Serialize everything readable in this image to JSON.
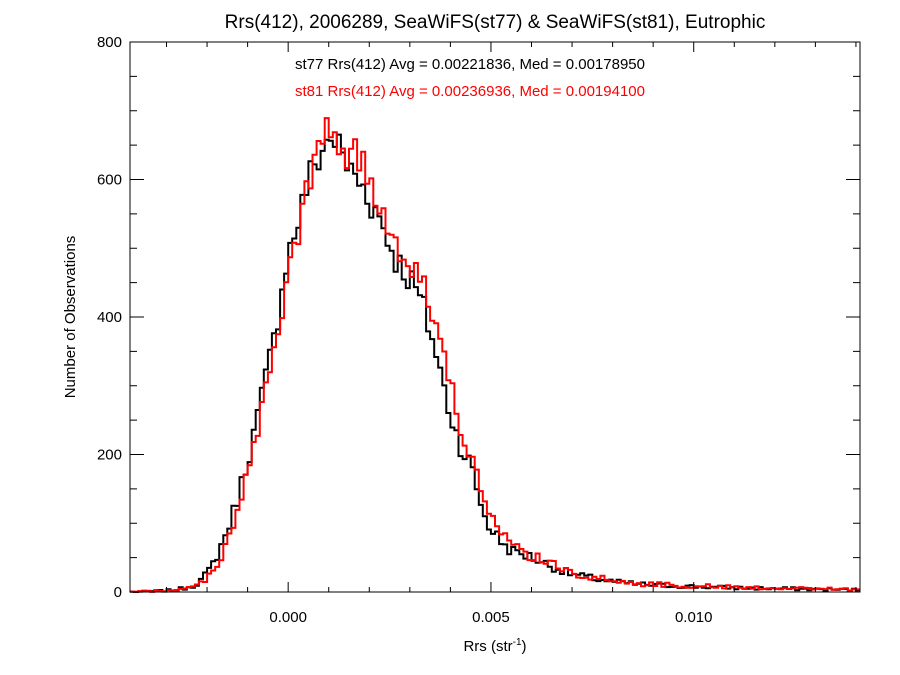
{
  "chart_data": {
    "type": "histogram-step",
    "title": "Rrs(412), 2006289, SeaWiFS(st77) & SeaWiFS(st81), Eutrophic",
    "xlabel_base": "Rrs (str",
    "xlabel_sup": "-1",
    "xlabel_close": ")",
    "ylabel": "Number of Observations",
    "xlim": [
      -0.0039,
      0.0141
    ],
    "ylim": [
      0,
      800
    ],
    "x_ticks": [
      0.0,
      0.005,
      0.01
    ],
    "x_tick_labels": [
      "0.000",
      "0.005",
      "0.010"
    ],
    "y_ticks": [
      0,
      200,
      400,
      600,
      800
    ],
    "y_tick_labels": [
      "0",
      "200",
      "400",
      "600",
      "800"
    ],
    "annotations": [
      {
        "text": "st77 Rrs(412) Avg = 0.00221836, Med = 0.00178950",
        "color": "#000000"
      },
      {
        "text": "st81 Rrs(412) Avg = 0.00236936, Med = 0.00194100",
        "color": "#ff0000"
      }
    ],
    "bin_width": 0.0001,
    "series": [
      {
        "color": "#000000",
        "x": [
          -0.0039,
          -0.003,
          -0.0026,
          -0.0023,
          -0.0021,
          -0.0019,
          -0.0017,
          -0.0015,
          -0.0013,
          -0.0011,
          -0.0009,
          -0.0007,
          -0.0005,
          -0.0003,
          -0.0001,
          0.0001,
          0.0003,
          0.0005,
          0.0007,
          0.0009,
          0.0011,
          0.0013,
          0.0015,
          0.0017,
          0.0019,
          0.0021,
          0.0023,
          0.0025,
          0.0027,
          0.0029,
          0.0031,
          0.0033,
          0.0035,
          0.0037,
          0.0039,
          0.0041,
          0.0043,
          0.0045,
          0.0047,
          0.0049,
          0.0051,
          0.0053,
          0.0055,
          0.0058,
          0.0061,
          0.0064,
          0.0067,
          0.007,
          0.0075,
          0.008,
          0.0085,
          0.009,
          0.01,
          0.011,
          0.012,
          0.013,
          0.0141
        ],
        "y": [
          0,
          2,
          5,
          10,
          20,
          35,
          60,
          90,
          125,
          170,
          215,
          270,
          325,
          380,
          470,
          510,
          550,
          600,
          625,
          650,
          665,
          640,
          615,
          600,
          585,
          560,
          540,
          505,
          480,
          465,
          445,
          420,
          380,
          335,
          280,
          240,
          205,
          185,
          140,
          100,
          85,
          70,
          60,
          55,
          48,
          40,
          32,
          26,
          20,
          15,
          12,
          10,
          8,
          6,
          5,
          4,
          3
        ]
      },
      {
        "color": "#ff0000",
        "x": [
          -0.0039,
          -0.003,
          -0.0026,
          -0.0023,
          -0.0021,
          -0.0019,
          -0.0017,
          -0.0015,
          -0.0013,
          -0.0011,
          -0.0009,
          -0.0007,
          -0.0005,
          -0.0003,
          -0.0001,
          0.0001,
          0.0003,
          0.0005,
          0.0007,
          0.0009,
          0.0011,
          0.0013,
          0.0015,
          0.0017,
          0.0019,
          0.0021,
          0.0023,
          0.0025,
          0.0027,
          0.0029,
          0.0031,
          0.0033,
          0.0035,
          0.0037,
          0.0039,
          0.0041,
          0.0043,
          0.0045,
          0.0047,
          0.0049,
          0.0051,
          0.0053,
          0.0055,
          0.0058,
          0.0061,
          0.0064,
          0.0067,
          0.007,
          0.0075,
          0.008,
          0.0085,
          0.009,
          0.01,
          0.011,
          0.012,
          0.013,
          0.0141
        ],
        "y": [
          0,
          2,
          4,
          8,
          15,
          28,
          45,
          75,
          110,
          150,
          195,
          250,
          305,
          360,
          430,
          490,
          530,
          590,
          640,
          665,
          670,
          650,
          640,
          630,
          610,
          585,
          560,
          530,
          510,
          490,
          470,
          455,
          420,
          380,
          320,
          275,
          235,
          200,
          160,
          120,
          95,
          80,
          68,
          58,
          50,
          42,
          35,
          28,
          22,
          16,
          13,
          11,
          9,
          7,
          6,
          5,
          4
        ]
      }
    ]
  }
}
